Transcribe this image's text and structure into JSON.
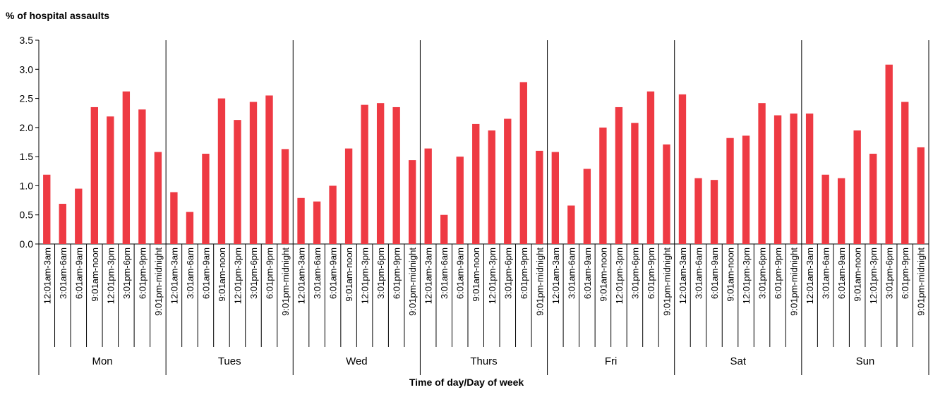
{
  "chart_data": {
    "type": "bar",
    "title": "",
    "ylabel": "% of hospital assaults",
    "xlabel": "Time of day/Day of week",
    "ylim": [
      0,
      3.5
    ],
    "yticks": [
      "0.0",
      "0.5",
      "1.0",
      "1.5",
      "2.0",
      "2.5",
      "3.0",
      "3.5"
    ],
    "bar_color": "#ee3a43",
    "time_periods": [
      "12:01am-3am",
      "3:01am-6am",
      "6:01am-9am",
      "9:01am-noon",
      "12:01pm-3pm",
      "3:01pm-6pm",
      "6:01pm-9pm",
      "9:01pm-midnight"
    ],
    "groups": [
      {
        "day": "Mon",
        "values": [
          1.19,
          0.69,
          0.95,
          2.35,
          2.19,
          2.62,
          2.31,
          1.58
        ]
      },
      {
        "day": "Tues",
        "values": [
          0.89,
          0.55,
          1.55,
          2.5,
          2.13,
          2.44,
          2.55,
          1.63
        ]
      },
      {
        "day": "Wed",
        "values": [
          0.79,
          0.73,
          1.0,
          1.64,
          2.39,
          2.42,
          2.35,
          1.44
        ]
      },
      {
        "day": "Thurs",
        "values": [
          1.64,
          0.5,
          1.5,
          2.06,
          1.95,
          2.15,
          2.78,
          1.6
        ]
      },
      {
        "day": "Fri",
        "values": [
          1.58,
          0.66,
          1.29,
          2.0,
          2.35,
          2.08,
          2.62,
          1.71
        ]
      },
      {
        "day": "Sat",
        "values": [
          2.57,
          1.13,
          1.1,
          1.82,
          1.86,
          2.42,
          2.21,
          2.24
        ]
      },
      {
        "day": "Sun",
        "values": [
          2.24,
          1.19,
          1.13,
          1.95,
          1.55,
          3.08,
          2.44,
          1.66
        ]
      }
    ]
  }
}
